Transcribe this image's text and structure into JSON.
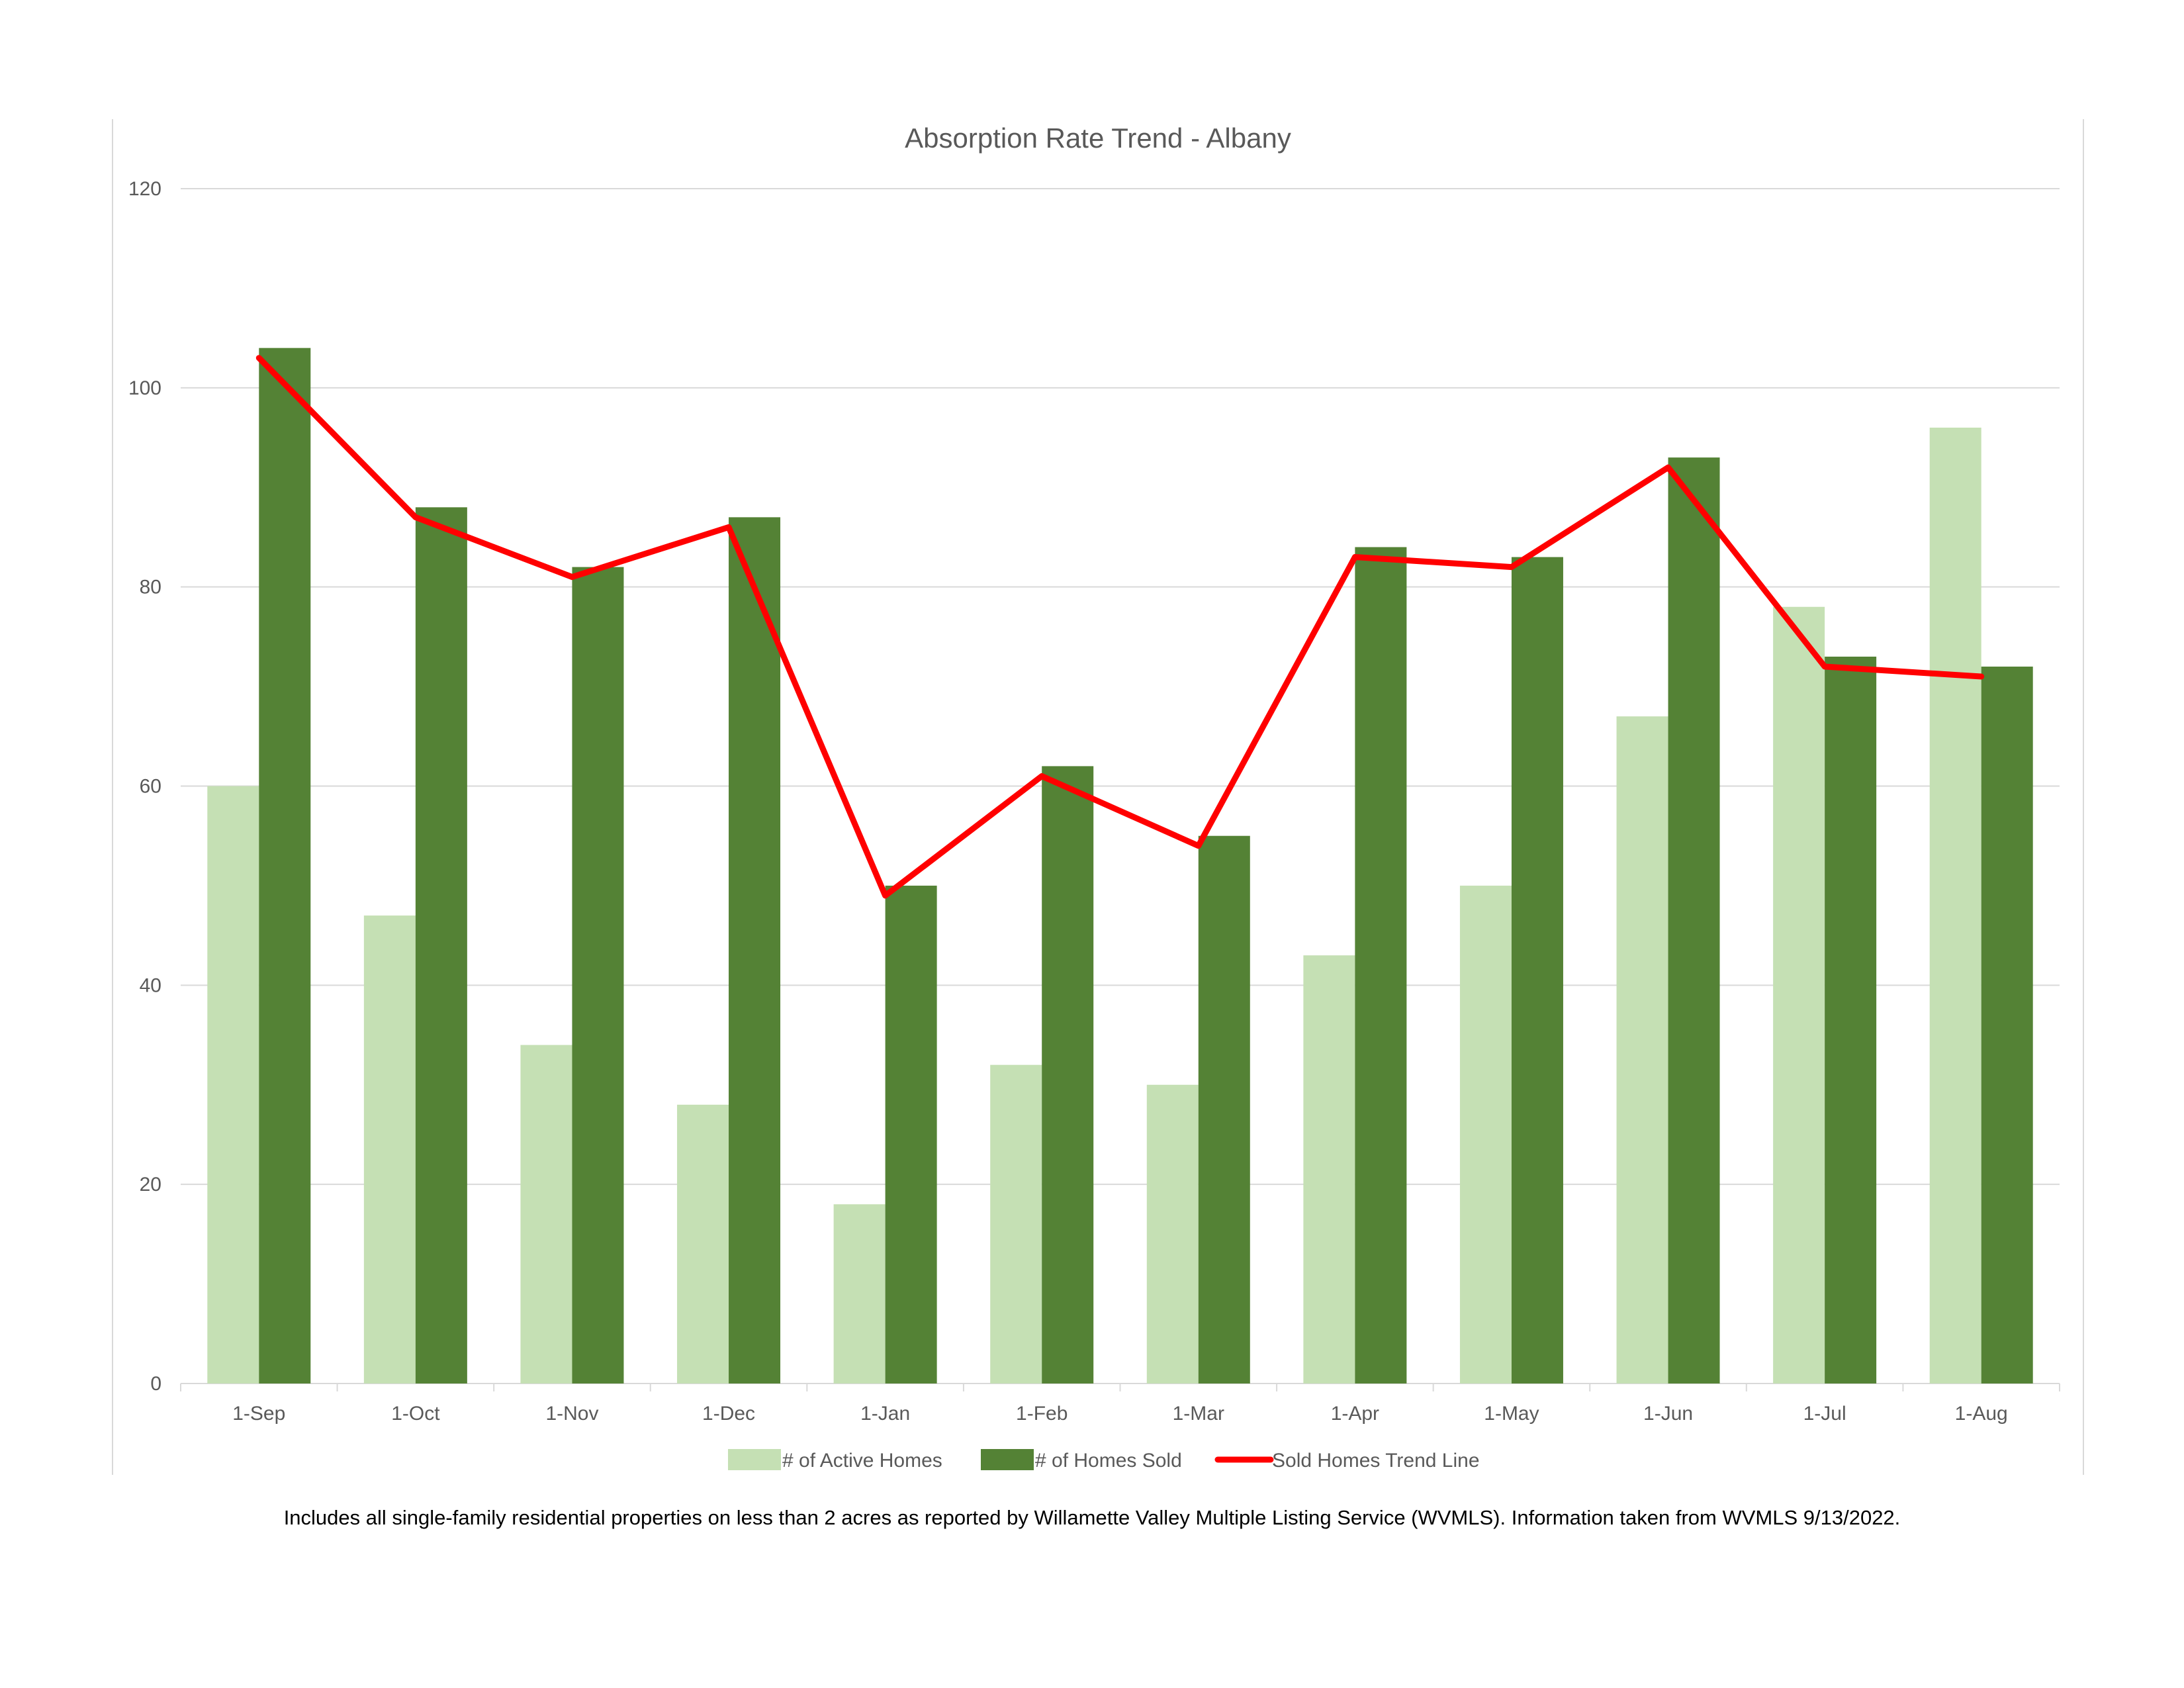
{
  "colors": {
    "active": "#c5e0b4",
    "sold": "#548235",
    "trend": "#ff0000",
    "grid": "#d9d9d9",
    "axis_text": "#595959",
    "title_text": "#595959"
  },
  "chart_data": {
    "type": "bar",
    "title": "Absorption Rate Trend - Albany",
    "xlabel": "",
    "ylabel": "",
    "ylim": [
      0,
      120
    ],
    "yticks": [
      0,
      20,
      40,
      60,
      80,
      100,
      120
    ],
    "grid": true,
    "legend_position": "bottom",
    "categories": [
      "1-Sep",
      "1-Oct",
      "1-Nov",
      "1-Dec",
      "1-Jan",
      "1-Feb",
      "1-Mar",
      "1-Apr",
      "1-May",
      "1-Jun",
      "1-Jul",
      "1-Aug"
    ],
    "series": [
      {
        "name": "# of Active Homes",
        "type": "bar",
        "color": "#c5e0b4",
        "values": [
          60,
          47,
          34,
          28,
          18,
          32,
          30,
          43,
          50,
          67,
          78,
          96
        ]
      },
      {
        "name": "# of Homes Sold",
        "type": "bar",
        "color": "#548235",
        "values": [
          104,
          88,
          82,
          87,
          50,
          62,
          55,
          84,
          83,
          93,
          73,
          72
        ]
      },
      {
        "name": "Sold Homes Trend Line",
        "type": "line",
        "color": "#ff0000",
        "values": [
          103,
          87,
          81,
          86,
          49,
          61,
          54,
          83,
          82,
          92,
          72,
          71
        ]
      }
    ]
  },
  "footnote": "Includes all single-family residential properties on less than 2 acres as reported by Willamette Valley Multiple Listing Service (WVMLS). Information taken from WVMLS 9/13/2022."
}
